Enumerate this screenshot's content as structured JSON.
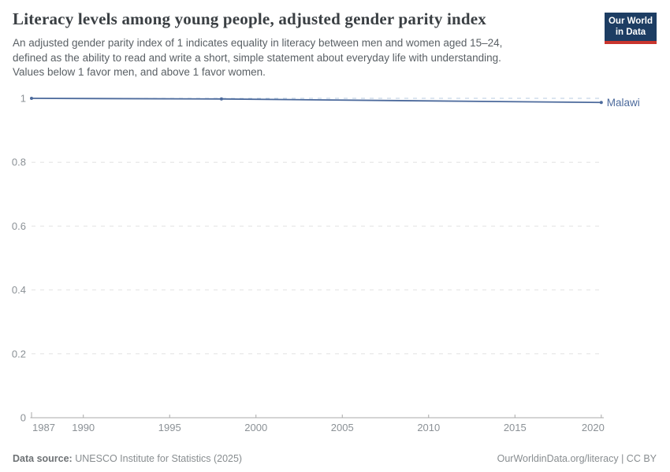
{
  "chart_data": {
    "type": "line",
    "title": "Literacy levels among young people, adjusted gender parity index",
    "subtitle_lines": [
      "An adjusted gender parity index of 1 indicates equality in literacy between men and women aged 15–24,",
      "defined as the ability to read and write a short, simple statement about everyday life with understanding.",
      "Values below 1 favor men, and above 1 favor women."
    ],
    "xlabel": "",
    "ylabel": "",
    "xlim": [
      1987,
      2020.1
    ],
    "ylim": [
      0,
      1
    ],
    "x_ticks": [
      1987,
      1990,
      1995,
      2000,
      2005,
      2010,
      2015,
      2020
    ],
    "y_ticks": [
      0,
      0.2,
      0.4,
      0.6,
      0.8,
      1
    ],
    "grid": "horizontal-dashed",
    "legend_position": "end-of-line-label",
    "reference_line": {
      "value": 1
    },
    "series": [
      {
        "name": "Malawi",
        "points": [
          {
            "x": 1987,
            "y": 1.0
          },
          {
            "x": 1998,
            "y": 0.998
          },
          {
            "x": 2020,
            "y": 0.987
          }
        ]
      }
    ]
  },
  "header": {
    "logo": {
      "line1": "Our World",
      "line2": "in Data"
    }
  },
  "footer": {
    "source_label": "Data source:",
    "source_value": "UNESCO Institute for Statistics (2025)",
    "rights": "OurWorldinData.org/literacy | CC BY"
  },
  "colors": {
    "series_line": "#4c6a9c",
    "grid": "#e2e2e2",
    "reference": "#b7cbe0",
    "axis": "#a9a9a9",
    "tick_text": "#8b9196",
    "logo_bg": "#1d3d63",
    "logo_bar": "#c9352e"
  }
}
